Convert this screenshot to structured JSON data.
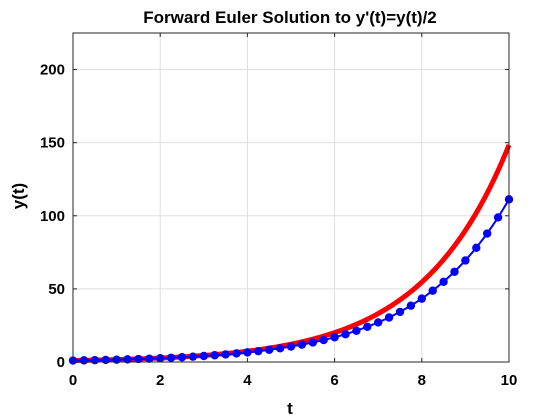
{
  "chart_data": {
    "type": "line",
    "title": "Forward Euler Solution to y'(t)=y(t)/2",
    "xlabel": "t",
    "ylabel": "y(t)",
    "xlim": [
      0,
      10
    ],
    "ylim": [
      0,
      225
    ],
    "xticks": [
      0,
      2,
      4,
      6,
      8,
      10
    ],
    "yticks": [
      0,
      50,
      100,
      150,
      200
    ],
    "grid": true,
    "legend": "none",
    "series": [
      {
        "color": "#ff0000",
        "style": "solid-thick",
        "equation": "y = e^(t/2)",
        "sample_step": 0.05
      },
      {
        "color": "#0000ff",
        "style": "line-with-dot-markers",
        "x": [
          0,
          0.25,
          0.5,
          0.75,
          1,
          1.25,
          1.5,
          1.75,
          2,
          2.25,
          2.5,
          2.75,
          3,
          3.25,
          3.5,
          3.75,
          4,
          4.25,
          4.5,
          4.75,
          5,
          5.25,
          5.5,
          5.75,
          6,
          6.25,
          6.5,
          6.75,
          7,
          7.25,
          7.5,
          7.75,
          8,
          8.25,
          8.5,
          8.75,
          9,
          9.25,
          9.5,
          9.75,
          10
        ],
        "y": [
          1.0,
          1.13,
          1.27,
          1.42,
          1.6,
          1.8,
          2.03,
          2.28,
          2.57,
          2.89,
          3.25,
          3.65,
          4.11,
          4.62,
          5.2,
          5.85,
          6.58,
          7.41,
          8.33,
          9.37,
          10.55,
          11.86,
          13.35,
          15.02,
          16.89,
          19.0,
          21.38,
          24.05,
          27.06,
          30.44,
          34.25,
          38.53,
          43.34,
          48.76,
          54.86,
          61.71,
          69.43,
          78.11,
          87.87,
          98.85,
          111.21
        ]
      }
    ]
  }
}
